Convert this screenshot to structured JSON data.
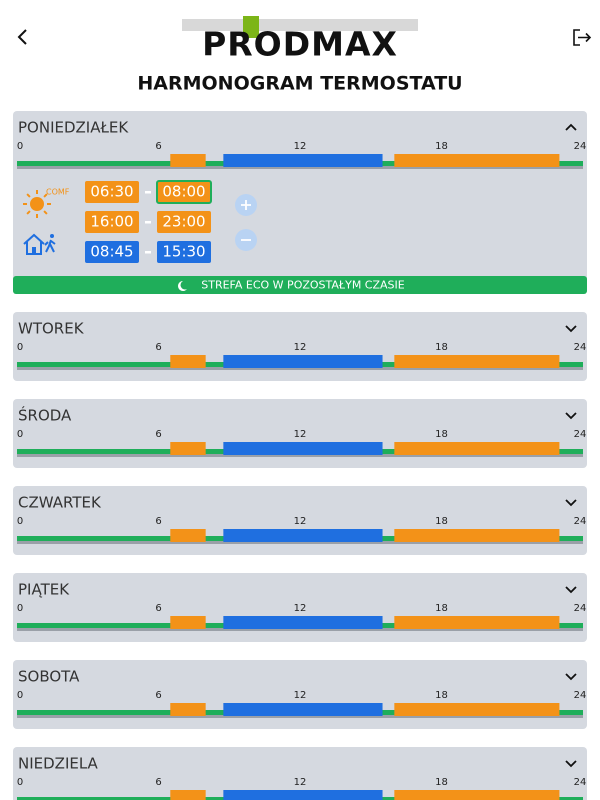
{
  "header": {
    "logo": "PRODMAX",
    "title": "HARMONOGRAM TERMOSTATU"
  },
  "axis_ticks": [
    0,
    6,
    12,
    18,
    24
  ],
  "colors": {
    "comfort": "#f39218",
    "economy": "#1f6fe0",
    "eco": "#1fae5a"
  },
  "detail": {
    "comfort_label": "COMF",
    "eco_note": "STREFA ECO W POZOSTAŁYM CZASIE"
  },
  "days": [
    {
      "name": "PONIEDZIAŁEK",
      "expanded": true,
      "segments": [
        {
          "start": 6.5,
          "end": 8,
          "mode": "comfort"
        },
        {
          "start": 8.75,
          "end": 15.5,
          "mode": "economy"
        },
        {
          "start": 16,
          "end": 23,
          "mode": "comfort"
        }
      ],
      "periods": [
        {
          "start": "06:30",
          "end": "08:00",
          "mode": "comfort",
          "selected_end": true
        },
        {
          "start": "16:00",
          "end": "23:00",
          "mode": "comfort"
        },
        {
          "start": "08:45",
          "end": "15:30",
          "mode": "economy"
        }
      ]
    },
    {
      "name": "WTOREK",
      "expanded": false,
      "segments": [
        {
          "start": 6.5,
          "end": 8,
          "mode": "comfort"
        },
        {
          "start": 8.75,
          "end": 15.5,
          "mode": "economy"
        },
        {
          "start": 16,
          "end": 23,
          "mode": "comfort"
        }
      ]
    },
    {
      "name": "ŚRODA",
      "expanded": false,
      "segments": [
        {
          "start": 6.5,
          "end": 8,
          "mode": "comfort"
        },
        {
          "start": 8.75,
          "end": 15.5,
          "mode": "economy"
        },
        {
          "start": 16,
          "end": 23,
          "mode": "comfort"
        }
      ]
    },
    {
      "name": "CZWARTEK",
      "expanded": false,
      "segments": [
        {
          "start": 6.5,
          "end": 8,
          "mode": "comfort"
        },
        {
          "start": 8.75,
          "end": 15.5,
          "mode": "economy"
        },
        {
          "start": 16,
          "end": 23,
          "mode": "comfort"
        }
      ]
    },
    {
      "name": "PIĄTEK",
      "expanded": false,
      "segments": [
        {
          "start": 6.5,
          "end": 8,
          "mode": "comfort"
        },
        {
          "start": 8.75,
          "end": 15.5,
          "mode": "economy"
        },
        {
          "start": 16,
          "end": 23,
          "mode": "comfort"
        }
      ]
    },
    {
      "name": "SOBOTA",
      "expanded": false,
      "segments": [
        {
          "start": 6.5,
          "end": 8,
          "mode": "comfort"
        },
        {
          "start": 8.75,
          "end": 15.5,
          "mode": "economy"
        },
        {
          "start": 16,
          "end": 23,
          "mode": "comfort"
        }
      ]
    },
    {
      "name": "NIEDZIELA",
      "expanded": false,
      "segments": [
        {
          "start": 6.5,
          "end": 8,
          "mode": "comfort"
        },
        {
          "start": 8.75,
          "end": 15.5,
          "mode": "economy"
        },
        {
          "start": 16,
          "end": 23,
          "mode": "comfort"
        }
      ]
    }
  ]
}
